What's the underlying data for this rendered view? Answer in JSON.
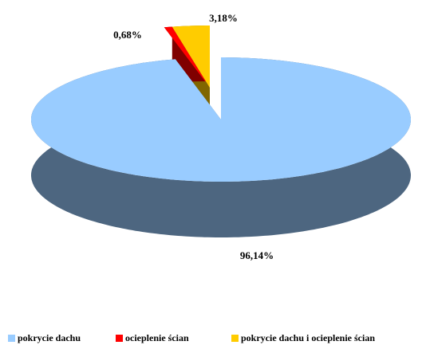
{
  "chart_data": {
    "type": "pie3d",
    "categories": [
      "pokrycie dachu",
      "ocieplenie ścian",
      "pokrycie dachu i ocieplenie ścian"
    ],
    "values": [
      96.14,
      0.68,
      3.18
    ],
    "value_labels": [
      "96,14%",
      "0,68%",
      "3,18%"
    ],
    "colors": [
      "#99ccff",
      "#ff0000",
      "#ffcc00"
    ],
    "legend": "bottom"
  }
}
